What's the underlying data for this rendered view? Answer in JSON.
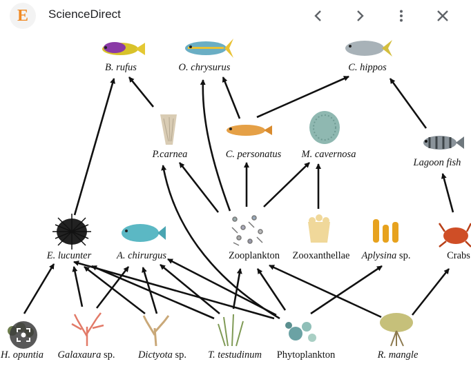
{
  "header": {
    "logo_letter": "E",
    "site_name": "ScienceDirect",
    "icons": [
      "chevron-left-icon",
      "chevron-right-icon",
      "more-vert-icon",
      "close-icon"
    ]
  },
  "diagram": {
    "nodes": {
      "b_rufus": "B. rufus",
      "o_chrysurus": "O. chrysurus",
      "c_hippos": "C. hippos",
      "p_carnea": "P.carnea",
      "c_personatus": "C. personatus",
      "m_cavernosa": "M. cavernosa",
      "lagoon_fish": "Lagoon fish",
      "e_lucunter": "E. lucunter",
      "a_chirurgus": "A. chirurgus",
      "zooplankton": "Zooplankton",
      "zooxanthellae": "Zooxanthellae",
      "aplysina_name": "Aplysina",
      "aplysina_sp": " sp.",
      "crabs": "Crabs",
      "h_opuntia": "H. opuntia",
      "galaxaura_name": "Galaxaura",
      "galaxaura_sp": " sp.",
      "dictyota_name": "Dictyota",
      "dictyota_sp": " sp.",
      "t_testudinum": "T. testudinum",
      "phytoplankton": "Phytoplankton",
      "r_mangle": "R. mangle"
    }
  },
  "lens": {
    "icon": "lens-search-icon"
  },
  "colors": {
    "logo": "#f08a24",
    "arrow": "#111111"
  }
}
